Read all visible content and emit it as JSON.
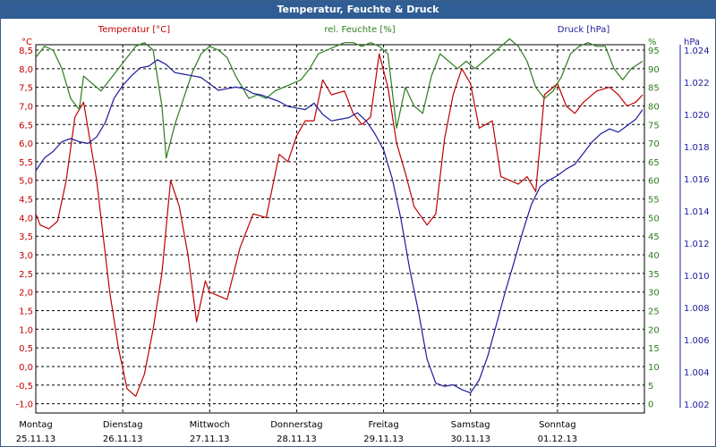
{
  "window": {
    "title": "Temperatur, Feuchte & Druck"
  },
  "colors": {
    "temperature": "#c00000",
    "humidity": "#2e7d1e",
    "pressure": "#1c1c9c",
    "grid": "#000000",
    "titlebar": "#2f5d94"
  },
  "chart_data": {
    "type": "line",
    "title": "Temperatur, Feuchte & Druck",
    "grid": true,
    "x_range": [
      0,
      7
    ],
    "x_ticks": [
      {
        "day": "Montag",
        "date": "25.11.13"
      },
      {
        "day": "Dienstag",
        "date": "26.11.13"
      },
      {
        "day": "Mittwoch",
        "date": "27.11.13"
      },
      {
        "day": "Donnerstag",
        "date": "28.11.13"
      },
      {
        "day": "Freitag",
        "date": "29.11.13"
      },
      {
        "day": "Samstag",
        "date": "30.11.13"
      },
      {
        "day": "Sonntag",
        "date": "01.12.13"
      }
    ],
    "axes": {
      "temperature": {
        "unit": "°C",
        "label": "Temperatur [°C]",
        "min": -1.0,
        "max": 8.5,
        "ticks": [
          "8,5",
          "8,0",
          "7,5",
          "7,0",
          "6,5",
          "6,0",
          "5,5",
          "5,0",
          "4,5",
          "4,0",
          "3,5",
          "3,0",
          "2,5",
          "2,0",
          "1,5",
          "1,0",
          "0,5",
          "0,0",
          "-0,5",
          "-1,0"
        ]
      },
      "humidity": {
        "unit": "%",
        "label": "rel. Feuchte [%]",
        "min": 0,
        "max": 95,
        "ticks": [
          "95",
          "90",
          "85",
          "80",
          "75",
          "70",
          "65",
          "60",
          "55",
          "50",
          "45",
          "40",
          "35",
          "30",
          "25",
          "20",
          "15",
          "10",
          "5",
          "0"
        ]
      },
      "pressure": {
        "unit": "hPa",
        "label": "Druck [hPa]",
        "min": 1002,
        "max": 1024,
        "ticks": [
          "1.024",
          "1.022",
          "1.020",
          "1.018",
          "1.016",
          "1.014",
          "1.012",
          "1.010",
          "1.008",
          "1.006",
          "1.004",
          "1.002"
        ]
      }
    },
    "series": [
      {
        "name": "Temperatur [°C]",
        "axis": "temperature",
        "x": [
          0,
          0.05,
          0.15,
          0.25,
          0.35,
          0.45,
          0.55,
          0.7,
          0.85,
          0.95,
          1.05,
          1.15,
          1.25,
          1.35,
          1.45,
          1.55,
          1.65,
          1.75,
          1.85,
          1.95,
          2.0,
          2.1,
          2.2,
          2.35,
          2.5,
          2.65,
          2.8,
          2.9,
          3.0,
          3.1,
          3.2,
          3.3,
          3.4,
          3.55,
          3.65,
          3.75,
          3.85,
          3.95,
          4.05,
          4.15,
          4.25,
          4.35,
          4.5,
          4.6,
          4.7,
          4.8,
          4.9,
          5.0,
          5.1,
          5.25,
          5.35,
          5.45,
          5.55,
          5.65,
          5.75,
          5.85,
          6.0,
          6.1,
          6.2,
          6.3,
          6.45,
          6.6,
          6.7,
          6.8,
          6.9,
          7.0
        ],
        "y": [
          4.1,
          3.8,
          3.7,
          3.9,
          5.0,
          6.7,
          7.1,
          5.0,
          2.0,
          0.5,
          -0.6,
          -0.8,
          -0.2,
          1.0,
          2.5,
          5.0,
          4.3,
          3.0,
          1.2,
          2.3,
          2.0,
          1.9,
          1.8,
          3.2,
          4.1,
          4.0,
          5.7,
          5.5,
          6.2,
          6.6,
          6.6,
          7.7,
          7.3,
          7.4,
          6.8,
          6.5,
          6.7,
          8.4,
          7.5,
          6.0,
          5.2,
          4.3,
          3.8,
          4.1,
          6.1,
          7.3,
          8.0,
          7.6,
          6.4,
          6.6,
          5.1,
          5.0,
          4.9,
          5.1,
          4.7,
          7.3,
          7.6,
          7.0,
          6.8,
          7.1,
          7.4,
          7.5,
          7.3,
          7.0,
          7.1,
          7.3
        ]
      },
      {
        "name": "rel. Feuchte [%]",
        "axis": "humidity",
        "x": [
          0,
          0.1,
          0.2,
          0.3,
          0.4,
          0.5,
          0.55,
          0.65,
          0.75,
          0.85,
          0.95,
          1.05,
          1.15,
          1.25,
          1.35,
          1.45,
          1.5,
          1.6,
          1.7,
          1.8,
          1.9,
          2.0,
          2.1,
          2.2,
          2.3,
          2.45,
          2.55,
          2.65,
          2.75,
          2.85,
          2.95,
          3.05,
          3.15,
          3.25,
          3.35,
          3.45,
          3.55,
          3.65,
          3.75,
          3.85,
          3.95,
          4.05,
          4.15,
          4.25,
          4.35,
          4.45,
          4.55,
          4.65,
          4.75,
          4.85,
          4.95,
          5.05,
          5.15,
          5.25,
          5.35,
          5.45,
          5.55,
          5.65,
          5.75,
          5.85,
          5.95,
          6.05,
          6.15,
          6.25,
          6.35,
          6.45,
          6.55,
          6.65,
          6.75,
          6.85,
          7.0
        ],
        "y": [
          93,
          96,
          95,
          90,
          82,
          79,
          88,
          86,
          84,
          87,
          90,
          93,
          96,
          97,
          95,
          80,
          66,
          75,
          82,
          89,
          94,
          96,
          95,
          93,
          88,
          82,
          83,
          82,
          84,
          85,
          86,
          87,
          90,
          94,
          95,
          96,
          97,
          97,
          96,
          97,
          96,
          94,
          74,
          85,
          80,
          78,
          88,
          94,
          92,
          90,
          92,
          90,
          92,
          94,
          96,
          98,
          96,
          92,
          85,
          82,
          84,
          88,
          94,
          96,
          97,
          96,
          96,
          90,
          87,
          90,
          92
        ]
      },
      {
        "name": "Druck [hPa]",
        "axis": "pressure",
        "x": [
          0,
          0.1,
          0.2,
          0.3,
          0.4,
          0.5,
          0.6,
          0.7,
          0.8,
          0.9,
          1.0,
          1.1,
          1.2,
          1.3,
          1.4,
          1.5,
          1.6,
          1.7,
          1.8,
          1.9,
          2.0,
          2.1,
          2.2,
          2.3,
          2.4,
          2.5,
          2.6,
          2.7,
          2.8,
          2.9,
          3.0,
          3.1,
          3.2,
          3.3,
          3.4,
          3.5,
          3.6,
          3.7,
          3.8,
          3.9,
          4.0,
          4.1,
          4.2,
          4.3,
          4.4,
          4.5,
          4.6,
          4.7,
          4.8,
          4.9,
          5.0,
          5.1,
          5.2,
          5.3,
          5.4,
          5.5,
          5.6,
          5.7,
          5.8,
          5.9,
          6.0,
          6.1,
          6.2,
          6.3,
          6.4,
          6.5,
          6.6,
          6.7,
          6.8,
          6.9,
          7.0
        ],
        "y": [
          1016.5,
          1017.3,
          1017.7,
          1018.3,
          1018.5,
          1018.3,
          1018.2,
          1018.6,
          1019.5,
          1021.0,
          1021.8,
          1022.4,
          1022.9,
          1023.0,
          1023.4,
          1023.1,
          1022.6,
          1022.5,
          1022.4,
          1022.3,
          1021.9,
          1021.5,
          1021.6,
          1021.7,
          1021.6,
          1021.3,
          1021.2,
          1021.0,
          1020.8,
          1020.5,
          1020.4,
          1020.3,
          1020.7,
          1020.0,
          1019.6,
          1019.7,
          1019.8,
          1020.1,
          1019.6,
          1018.8,
          1017.8,
          1016.0,
          1013.5,
          1010.4,
          1007.8,
          1004.8,
          1003.3,
          1003.1,
          1003.2,
          1002.9,
          1002.7,
          1003.5,
          1005.0,
          1007.0,
          1009.0,
          1010.8,
          1012.7,
          1014.4,
          1015.5,
          1015.9,
          1016.2,
          1016.6,
          1016.9,
          1017.6,
          1018.3,
          1018.8,
          1019.1,
          1018.9,
          1019.3,
          1019.7,
          1020.3
        ]
      }
    ]
  }
}
